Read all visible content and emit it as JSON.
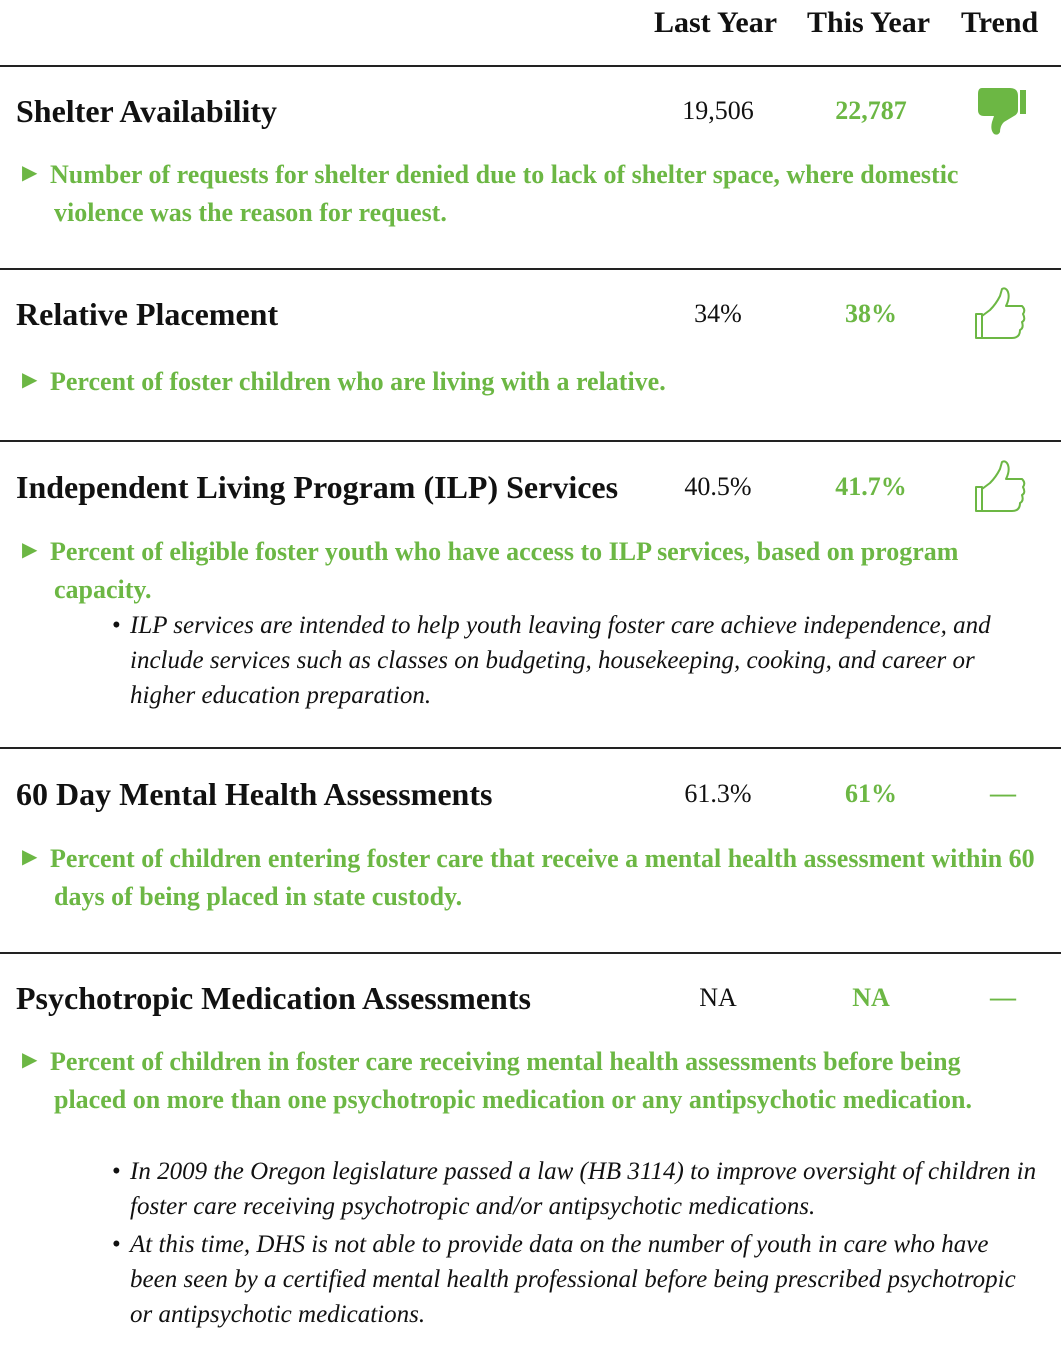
{
  "header": {
    "columns": [
      "Last Year",
      "This Year",
      "Trend"
    ]
  },
  "rows": [
    {
      "title": "Shelter Availability",
      "last_year": "19,506",
      "this_year": "22,787",
      "description": "Number of requests for shelter denied due to lack of shelter space, where domestic violence was the reason for request.",
      "notes": []
    },
    {
      "title": "Relative Placement",
      "last_year": "34%",
      "this_year": "38%",
      "description": "Percent of foster children who are living with a relative.",
      "notes": []
    },
    {
      "title": "Independent Living Program (ILP) Services",
      "last_year": "40.5%",
      "this_year": "41.7%",
      "description": "Percent of eligible foster youth who have access to ILP services, based on program capacity.",
      "notes": [
        "ILP services are intended to help youth leaving foster care achieve independence, and include services such as classes on budgeting, housekeeping, cooking, and career or higher education preparation."
      ]
    },
    {
      "title": "60 Day Mental Health Assessments",
      "last_year": "61.3%",
      "this_year": "61%",
      "trend": "—",
      "description": "Percent of children entering foster care that receive a mental health assessment within 60 days of being placed in state custody.",
      "notes": []
    },
    {
      "title": "Psychotropic Medication Assessments",
      "last_year": "NA",
      "this_year": "NA",
      "trend": "—",
      "description": "Percent of children in foster care receiving mental health assessments before being placed on more than one psychotropic medication or any antipsychotic medication.",
      "notes": [
        "In 2009 the Oregon legislature passed a law (HB 3114) to improve oversight of children in foster care receiving psychotropic and/or antipsychotic medications.",
        "At this time, DHS is not able to provide data on the number of youth in care who have been seen by a certified mental health professional before being prescribed psychotropic or antipsychotic medications."
      ]
    }
  ]
}
